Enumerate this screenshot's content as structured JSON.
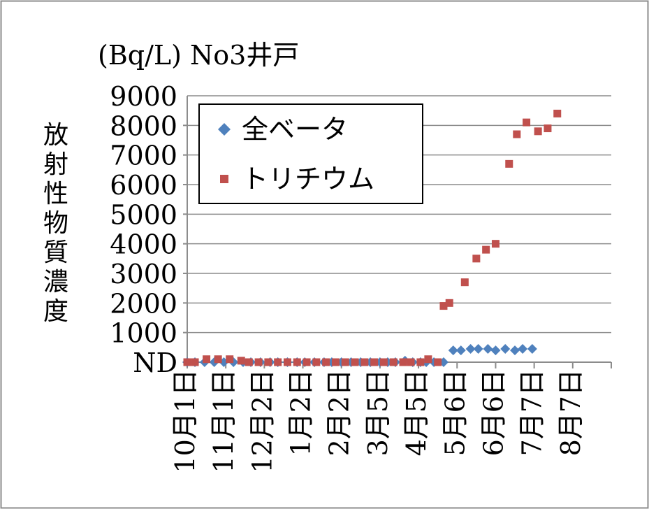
{
  "chart_data": {
    "type": "scatter",
    "title": "(Bq/L) No3井戸",
    "ylabel": "放射性物質濃度",
    "ylim": [
      0,
      9000
    ],
    "y_ticks": [
      "ND",
      "1000",
      "2000",
      "3000",
      "4000",
      "5000",
      "6000",
      "7000",
      "8000",
      "9000"
    ],
    "x_ticks": [
      "10月1日",
      "11月1日",
      "12月2日",
      "1月2日",
      "2月2日",
      "3月5日",
      "4月5日",
      "5月6日",
      "6月6日",
      "7月7日",
      "8月7日"
    ],
    "grid": true,
    "legend_position": "top-left",
    "colors": {
      "beta": "#4f81bd",
      "tritium": "#c0504d"
    },
    "series": [
      {
        "name": "全ベータ",
        "marker": "diamond",
        "x": [
          0.0,
          0.2,
          0.45,
          0.7,
          0.95,
          1.2,
          1.45,
          1.65,
          1.9,
          2.15,
          2.35,
          2.6,
          2.85,
          3.05,
          3.3,
          3.55,
          3.75,
          4.0,
          4.25,
          4.5,
          4.75,
          5.0,
          5.2,
          5.4,
          5.65,
          5.85,
          6.05,
          6.2,
          6.4,
          6.65,
          6.9,
          7.1,
          7.35,
          7.55,
          7.8,
          8.0,
          8.25,
          8.5,
          8.7,
          8.95
        ],
        "y": [
          0,
          0,
          0,
          0,
          0,
          0,
          0,
          0,
          0,
          0,
          0,
          0,
          0,
          0,
          0,
          0,
          0,
          0,
          0,
          0,
          0,
          0,
          0,
          0,
          50,
          0,
          0,
          0,
          0,
          0,
          400,
          400,
          450,
          450,
          450,
          400,
          450,
          400,
          450,
          450
        ]
      },
      {
        "name": "トリチウム",
        "marker": "square",
        "x": [
          0.0,
          0.2,
          0.5,
          0.8,
          1.1,
          1.4,
          1.6,
          1.85,
          2.1,
          2.35,
          2.6,
          2.85,
          3.1,
          3.35,
          3.6,
          3.85,
          4.1,
          4.35,
          4.6,
          4.85,
          5.1,
          5.35,
          5.6,
          5.8,
          6.05,
          6.25,
          6.5,
          6.65,
          6.8,
          7.2,
          7.5,
          7.75,
          8.0,
          8.35,
          8.55,
          8.8,
          9.1,
          9.35,
          9.6
        ],
        "y": [
          0,
          0,
          100,
          100,
          100,
          50,
          0,
          0,
          0,
          0,
          0,
          0,
          0,
          0,
          0,
          0,
          0,
          0,
          0,
          0,
          0,
          0,
          0,
          0,
          0,
          100,
          0,
          1900,
          2000,
          2700,
          3500,
          3800,
          4000,
          6700,
          7700,
          8100,
          7800,
          7900,
          8400
        ]
      }
    ]
  }
}
